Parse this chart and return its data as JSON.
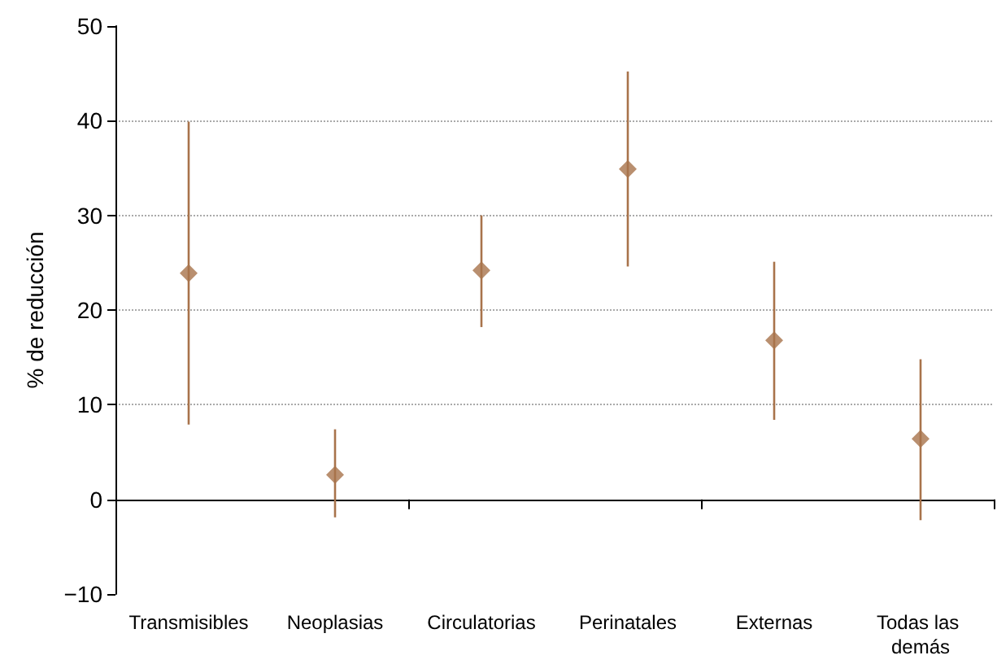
{
  "chart_data": {
    "type": "scatter",
    "ylabel": "% de reducción",
    "categories": [
      "Transmisibles",
      "Neoplasias",
      "Circulatorias",
      "Perinatales",
      "Externas",
      "Todas las demás"
    ],
    "series": [
      {
        "color": "#a8734b",
        "values": [
          23.9,
          2.6,
          24.2,
          34.9,
          16.8,
          6.4
        ],
        "errors": [
          [
            7.9,
            39.9
          ],
          [
            -1.9,
            7.4
          ],
          [
            18.2,
            30.0
          ],
          [
            24.6,
            45.2
          ],
          [
            8.4,
            25.1
          ],
          [
            -2.2,
            14.8
          ]
        ]
      }
    ],
    "ylim": [
      -10,
      50
    ],
    "yticks": [
      {
        "value": -10,
        "label": "−10"
      },
      0,
      10,
      20,
      30,
      40,
      50
    ],
    "grid": "y",
    "marker": "diamond"
  }
}
